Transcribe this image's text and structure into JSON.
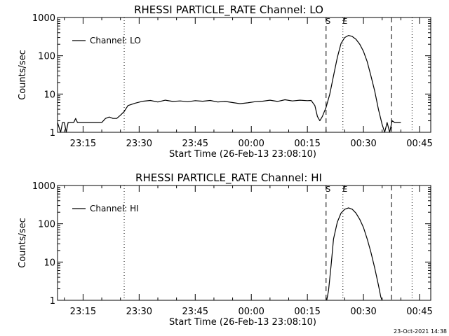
{
  "timestamp": "23-Oct-2021 14:38",
  "chart_data": [
    {
      "type": "line",
      "title": "RHESSI PARTICLE_RATE Channel: LO",
      "xlabel": "Start Time (26-Feb-13 23:08:10)",
      "ylabel": "Counts/sec",
      "y_scale": "log",
      "ylim": [
        1,
        1000
      ],
      "xlim": [
        "23:08:10",
        "00:48:00"
      ],
      "x_tick_labels": [
        "23:15",
        "23:30",
        "23:45",
        "00:00",
        "00:15",
        "00:30",
        "00:45"
      ],
      "y_tick_labels": [
        "1",
        "10",
        "100",
        "1000"
      ],
      "legend": {
        "position": "top-left",
        "entries": [
          "Channel: LO"
        ]
      },
      "markers": [
        {
          "time": "23:26:00",
          "style": "dotted",
          "label": ""
        },
        {
          "time": "00:20:00",
          "style": "dashed",
          "label": "S"
        },
        {
          "time": "00:24:30",
          "style": "dotted",
          "label": "E"
        },
        {
          "time": "00:37:30",
          "style": "dashed",
          "label": ""
        },
        {
          "time": "00:43:00",
          "style": "dotted",
          "label": ""
        }
      ],
      "series": [
        {
          "name": "Channel: LO",
          "points": [
            [
              "23:08:10",
              1.8
            ],
            [
              "23:09:00",
              1.0
            ],
            [
              "23:09:30",
              1.8
            ],
            [
              "23:10:00",
              1.8
            ],
            [
              "23:10:30",
              1.0
            ],
            [
              "23:11:00",
              1.8
            ],
            [
              "23:12:30",
              1.8
            ],
            [
              "23:13:00",
              2.3
            ],
            [
              "23:13:30",
              1.8
            ],
            [
              "23:18:00",
              1.8
            ],
            [
              "23:20:00",
              1.8
            ],
            [
              "23:21:00",
              2.3
            ],
            [
              "23:22:00",
              2.5
            ],
            [
              "23:23:00",
              2.3
            ],
            [
              "23:24:00",
              2.3
            ],
            [
              "23:25:00",
              2.8
            ],
            [
              "23:26:00",
              3.5
            ],
            [
              "23:27:00",
              5.0
            ],
            [
              "23:29:00",
              5.8
            ],
            [
              "23:31:00",
              6.5
            ],
            [
              "23:33:00",
              6.8
            ],
            [
              "23:35:00",
              6.2
            ],
            [
              "23:37:00",
              6.9
            ],
            [
              "23:39:00",
              6.4
            ],
            [
              "23:41:00",
              6.6
            ],
            [
              "23:43:00",
              6.3
            ],
            [
              "23:45:00",
              6.7
            ],
            [
              "23:47:00",
              6.5
            ],
            [
              "23:49:00",
              6.8
            ],
            [
              "23:51:00",
              6.2
            ],
            [
              "23:53:00",
              6.4
            ],
            [
              "23:55:00",
              6.0
            ],
            [
              "23:57:00",
              5.6
            ],
            [
              "23:59:00",
              5.9
            ],
            [
              "00:01:00",
              6.3
            ],
            [
              "00:03:00",
              6.5
            ],
            [
              "00:05:00",
              6.9
            ],
            [
              "00:07:00",
              6.4
            ],
            [
              "00:09:00",
              7.1
            ],
            [
              "00:11:00",
              6.6
            ],
            [
              "00:13:00",
              6.9
            ],
            [
              "00:15:00",
              6.7
            ],
            [
              "00:16:00",
              6.8
            ],
            [
              "00:17:00",
              5.0
            ],
            [
              "00:17:40",
              2.6
            ],
            [
              "00:18:20",
              2.0
            ],
            [
              "00:19:00",
              2.6
            ],
            [
              "00:20:00",
              4.5
            ],
            [
              "00:21:00",
              10
            ],
            [
              "00:22:00",
              30
            ],
            [
              "00:23:00",
              90
            ],
            [
              "00:24:00",
              210
            ],
            [
              "00:25:00",
              300
            ],
            [
              "00:26:00",
              340
            ],
            [
              "00:27:00",
              320
            ],
            [
              "00:28:00",
              270
            ],
            [
              "00:29:00",
              200
            ],
            [
              "00:30:00",
              130
            ],
            [
              "00:31:00",
              70
            ],
            [
              "00:32:00",
              30
            ],
            [
              "00:33:00",
              12
            ],
            [
              "00:34:00",
              4.0
            ],
            [
              "00:35:00",
              1.6
            ],
            [
              "00:35:40",
              1.0
            ],
            [
              "00:36:20",
              1.8
            ],
            [
              "00:37:00",
              1.0
            ],
            [
              "00:37:40",
              2.0
            ],
            [
              "00:38:20",
              1.8
            ],
            [
              "00:39:00",
              1.8
            ],
            [
              "00:40:00",
              1.8
            ]
          ]
        }
      ]
    },
    {
      "type": "line",
      "title": "RHESSI PARTICLE_RATE Channel: HI",
      "xlabel": "Start Time (26-Feb-13 23:08:10)",
      "ylabel": "Counts/sec",
      "y_scale": "log",
      "ylim": [
        1,
        1000
      ],
      "xlim": [
        "23:08:10",
        "00:48:00"
      ],
      "x_tick_labels": [
        "23:15",
        "23:30",
        "23:45",
        "00:00",
        "00:15",
        "00:30",
        "00:45"
      ],
      "y_tick_labels": [
        "1",
        "10",
        "100",
        "1000"
      ],
      "legend": {
        "position": "top-left",
        "entries": [
          "Channel: HI"
        ]
      },
      "markers": [
        {
          "time": "23:26:00",
          "style": "dotted",
          "label": ""
        },
        {
          "time": "00:20:00",
          "style": "dashed",
          "label": "S"
        },
        {
          "time": "00:24:30",
          "style": "dotted",
          "label": "E"
        },
        {
          "time": "00:37:30",
          "style": "dashed",
          "label": ""
        },
        {
          "time": "00:43:00",
          "style": "dotted",
          "label": ""
        }
      ],
      "series": [
        {
          "name": "Channel: HI",
          "points": [
            [
              "00:20:10",
              1.0
            ],
            [
              "00:20:40",
              1.8
            ],
            [
              "00:21:20",
              8
            ],
            [
              "00:22:00",
              40
            ],
            [
              "00:23:00",
              110
            ],
            [
              "00:24:00",
              190
            ],
            [
              "00:25:00",
              240
            ],
            [
              "00:26:00",
              260
            ],
            [
              "00:27:00",
              240
            ],
            [
              "00:28:00",
              190
            ],
            [
              "00:29:00",
              130
            ],
            [
              "00:30:00",
              80
            ],
            [
              "00:31:00",
              40
            ],
            [
              "00:32:00",
              18
            ],
            [
              "00:33:00",
              7
            ],
            [
              "00:34:00",
              2.5
            ],
            [
              "00:34:40",
              1.2
            ],
            [
              "00:35:00",
              1.0
            ]
          ]
        }
      ]
    }
  ]
}
